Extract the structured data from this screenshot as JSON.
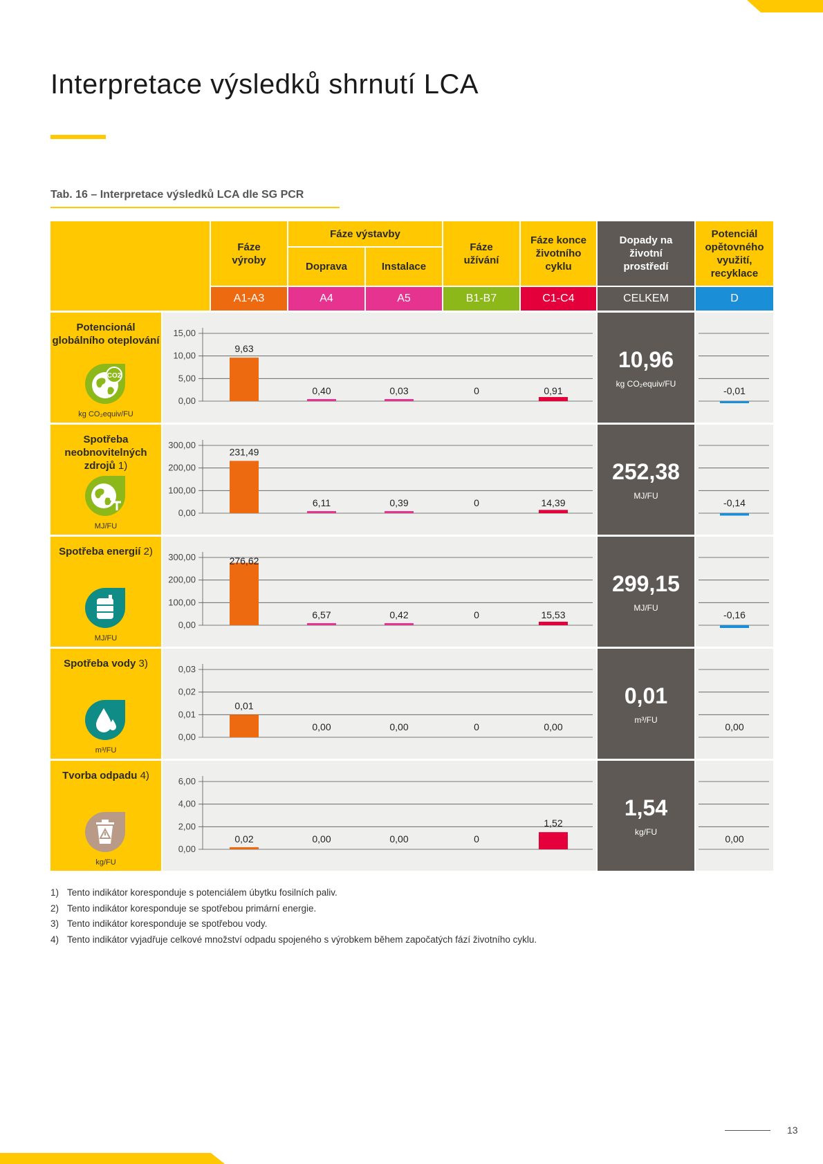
{
  "title": "Interpretace výsledků shrnutí LCA",
  "caption": "Tab. 16 – Interpretace výsledků LCA dle SG PCR",
  "headers": {
    "production": "Fáze výroby",
    "construction": "Fáze výstavby",
    "transport": "Doprava",
    "installation": "Instalace",
    "use": "Fáze užívání",
    "end_of_life": "Fáze konce životního cyklu",
    "impact": "Dopady na životní prostředí",
    "reuse": "Potenciál opětovného využití, recyklace"
  },
  "codes": [
    "A1-A3",
    "A4",
    "A5",
    "B1-B7",
    "C1-C4",
    "CELKEM",
    "D"
  ],
  "colors": {
    "accent": "#FFC800",
    "dark": "#5E5954",
    "A1-A3": "#EE6A10",
    "A4": "#E6338F",
    "A5": "#E6338F",
    "B1-B7": "#8DB81A",
    "C1-C4": "#E4003A",
    "D": "#1A8FD8",
    "chart_bg": "#EFEFEE"
  },
  "chart_data": [
    {
      "type": "bar",
      "indicator": "Potencionál globálního oteplování",
      "footnote_ref": "",
      "icon": "co2-globe-icon",
      "icon_color": "#8DB81A",
      "unit": "kg CO₂equiv/FU",
      "categories": [
        "A1-A3",
        "A4",
        "A5",
        "B1-B7",
        "C1-C4"
      ],
      "values": [
        9.63,
        0.4,
        0.03,
        0,
        0.91
      ],
      "value_labels": [
        "9,63",
        "0,40",
        "0,03",
        "0",
        "0,91"
      ],
      "ticks": [
        "0,00",
        "5,00",
        "10,00",
        "15,00"
      ],
      "ylim": [
        0,
        15
      ],
      "total": "10,96",
      "total_unit": "kg CO₂equiv/FU",
      "d_value": -0.01,
      "d_label": "-0,01"
    },
    {
      "type": "bar",
      "indicator": "Spotřeba neobnovitelných zdrojů",
      "footnote_ref": "1)",
      "icon": "resources-globe-icon",
      "icon_color": "#8DB81A",
      "unit": "MJ/FU",
      "categories": [
        "A1-A3",
        "A4",
        "A5",
        "B1-B7",
        "C1-C4"
      ],
      "values": [
        231.49,
        6.11,
        0.39,
        0,
        14.39
      ],
      "value_labels": [
        "231,49",
        "6,11",
        "0,39",
        "0",
        "14,39"
      ],
      "ticks": [
        "0,00",
        "100,00",
        "200,00",
        "300,00"
      ],
      "ylim": [
        0,
        300
      ],
      "total": "252,38",
      "total_unit": "MJ/FU",
      "d_value": -0.14,
      "d_label": "-0,14"
    },
    {
      "type": "bar",
      "indicator": "Spotřeba energií",
      "footnote_ref": "2)",
      "icon": "energy-barrel-icon",
      "icon_color": "#0E8C85",
      "unit": "MJ/FU",
      "categories": [
        "A1-A3",
        "A4",
        "A5",
        "B1-B7",
        "C1-C4"
      ],
      "values": [
        276.62,
        6.57,
        0.42,
        0,
        15.53
      ],
      "value_labels": [
        "276,62",
        "6,57",
        "0,42",
        "0",
        "15,53"
      ],
      "ticks": [
        "0,00",
        "100,00",
        "200,00",
        "300,00"
      ],
      "ylim": [
        0,
        300
      ],
      "total": "299,15",
      "total_unit": "MJ/FU",
      "d_value": -0.16,
      "d_label": "-0,16"
    },
    {
      "type": "bar",
      "indicator": "Spotřeba vody",
      "footnote_ref": "3)",
      "icon": "water-drop-icon",
      "icon_color": "#0E8C85",
      "unit": "m³/FU",
      "categories": [
        "A1-A3",
        "A4",
        "A5",
        "B1-B7",
        "C1-C4"
      ],
      "values": [
        0.01,
        0.0,
        0.0,
        0,
        0.0
      ],
      "value_labels": [
        "0,01",
        "0,00",
        "0,00",
        "0",
        "0,00"
      ],
      "ticks": [
        "0,00",
        "0,01",
        "0,02",
        "0,03"
      ],
      "ylim": [
        0,
        0.03
      ],
      "total": "0,01",
      "total_unit": "m³/FU",
      "d_value": 0,
      "d_label": "0,00"
    },
    {
      "type": "bar",
      "indicator": "Tvorba odpadu",
      "footnote_ref": "4)",
      "icon": "waste-bin-icon",
      "icon_color": "#B89A86",
      "unit": "kg/FU",
      "categories": [
        "A1-A3",
        "A4",
        "A5",
        "B1-B7",
        "C1-C4"
      ],
      "values": [
        0.02,
        0.0,
        0.0,
        0,
        1.52
      ],
      "value_labels": [
        "0,02",
        "0,00",
        "0,00",
        "0",
        "1,52"
      ],
      "ticks": [
        "0,00",
        "2,00",
        "4,00",
        "6,00"
      ],
      "ylim": [
        0,
        6
      ],
      "total": "1,54",
      "total_unit": "kg/FU",
      "d_value": 0,
      "d_label": "0,00"
    }
  ],
  "footnotes": [
    {
      "num": "1)",
      "text": "Tento indikátor koresponduje s potenciálem úbytku fosilních paliv."
    },
    {
      "num": "2)",
      "text": "Tento indikátor koresponduje se spotřebou primární energie."
    },
    {
      "num": "3)",
      "text": "Tento indikátor koresponduje se spotřebou vody."
    },
    {
      "num": "4)",
      "text": "Tento indikátor vyjadřuje celkové množství odpadu spojeného s výrobkem během započatých fází životního cyklu."
    }
  ],
  "page_number": "13"
}
